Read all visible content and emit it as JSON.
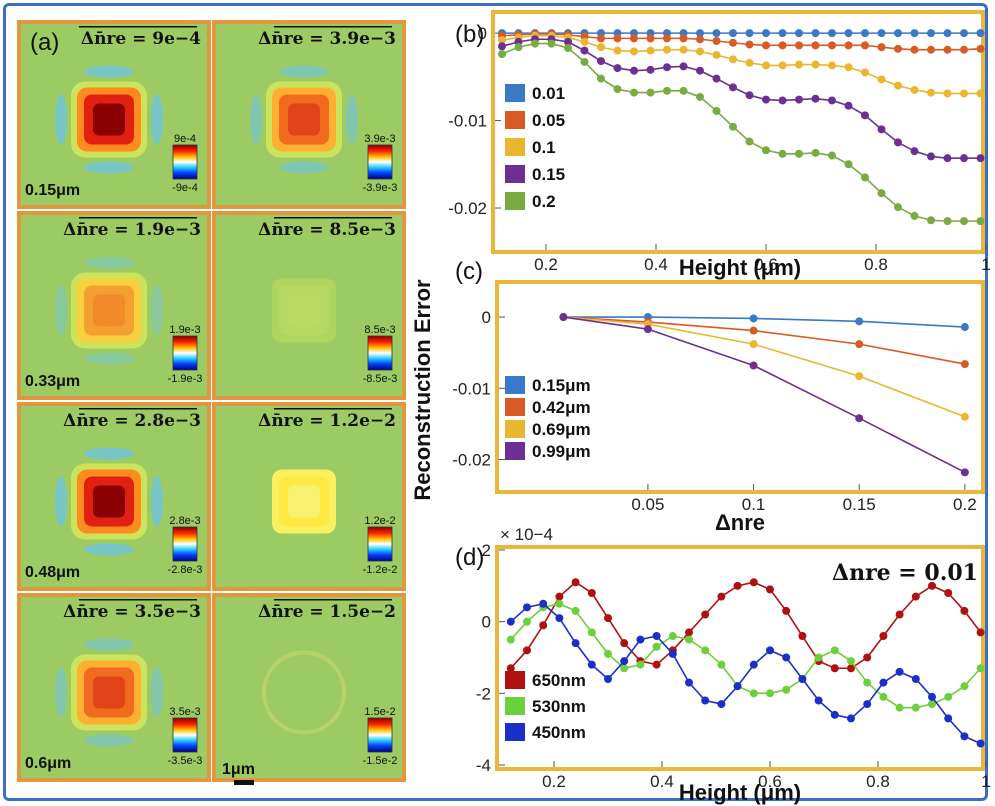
{
  "colors": {
    "frame": "#3a6fc4",
    "panel_border": "#e9b83a",
    "tile_bg": "#9ccb63",
    "tile_border": "#e1973f"
  },
  "panel_a": {
    "letter": "(a)",
    "scale_bar_label": "1μm",
    "tiles": [
      {
        "formula": "Δn̄re = 9e−4",
        "height_label": "0.15μm",
        "cb_max": "9e-4",
        "cb_min": "-9e-4",
        "intensity": 0.95,
        "pattern": "strong"
      },
      {
        "formula": "Δn̄re = 3.9e−3",
        "height_label": "",
        "cb_max": "3.9e-3",
        "cb_min": "-3.9e-3",
        "intensity": 0.75,
        "pattern": "medium"
      },
      {
        "formula": "Δn̄re = 1.9e−3",
        "height_label": "0.33μm",
        "cb_max": "1.9e-3",
        "cb_min": "-1.9e-3",
        "intensity": 0.55,
        "pattern": "weak"
      },
      {
        "formula": "Δn̄re = 8.5e−3",
        "height_label": "",
        "cb_max": "8.5e-3",
        "cb_min": "-8.5e-3",
        "intensity": 0.15,
        "pattern": "faint"
      },
      {
        "formula": "Δn̄re = 2.8e−3",
        "height_label": "0.48μm",
        "cb_max": "2.8e-3",
        "cb_min": "-2.8e-3",
        "intensity": 0.95,
        "pattern": "strong"
      },
      {
        "formula": "Δn̄re = 1.2e−2",
        "height_label": "",
        "cb_max": "1.2e-2",
        "cb_min": "-1.2e-2",
        "intensity": 0.35,
        "pattern": "yellow"
      },
      {
        "formula": "Δn̄re = 3.5e−3",
        "height_label": "0.6μm",
        "cb_max": "3.5e-3",
        "cb_min": "-3.5e-3",
        "intensity": 0.7,
        "pattern": "medium"
      },
      {
        "formula": "Δn̄re = 1.5e−2",
        "height_label": "",
        "cb_max": "1.5e-2",
        "cb_min": "-1.5e-2",
        "intensity": 0.1,
        "pattern": "ring"
      }
    ]
  },
  "chart_data": [
    {
      "panel": "(b)",
      "type": "line",
      "xlabel": "Height (μm)",
      "ylabel": "",
      "xlim": [
        0.12,
        1.0
      ],
      "ylim": [
        -0.024,
        0.0015
      ],
      "xticks": [
        0.2,
        0.4,
        0.6,
        0.8,
        1
      ],
      "xtick_labels": [
        "0.2",
        "0.4",
        "0.6",
        "0.8",
        "1"
      ],
      "yticks": [
        0,
        -0.01,
        -0.02
      ],
      "ytick_labels": [
        "0",
        "-0.01",
        "-0.02"
      ],
      "x": [
        0.12,
        0.15,
        0.18,
        0.21,
        0.24,
        0.27,
        0.3,
        0.33,
        0.36,
        0.39,
        0.42,
        0.45,
        0.48,
        0.51,
        0.54,
        0.57,
        0.6,
        0.63,
        0.66,
        0.69,
        0.72,
        0.75,
        0.78,
        0.81,
        0.84,
        0.87,
        0.9,
        0.93,
        0.96,
        0.99
      ],
      "series": [
        {
          "name": "0.01",
          "color": "#3a78c8",
          "values": [
            0,
            0,
            0,
            0,
            0,
            0,
            0,
            0,
            0,
            0,
            0,
            0,
            0,
            0,
            0,
            0,
            0,
            0,
            0,
            0,
            0,
            0,
            0,
            0,
            0,
            0,
            0,
            0,
            0,
            0
          ]
        },
        {
          "name": "0.05",
          "color": "#d85a24",
          "values": [
            -0.0003,
            -0.0002,
            -0.0001,
            -0.0001,
            -0.0002,
            -0.0004,
            -0.0006,
            -0.0006,
            -0.0006,
            -0.0006,
            -0.0006,
            -0.0006,
            -0.0007,
            -0.0009,
            -0.0011,
            -0.0013,
            -0.0014,
            -0.0014,
            -0.0014,
            -0.0014,
            -0.0014,
            -0.0014,
            -0.0014,
            -0.0016,
            -0.0018,
            -0.0019,
            -0.0019,
            -0.0019,
            -0.0019,
            -0.0018
          ]
        },
        {
          "name": "0.1",
          "color": "#eab62f",
          "values": [
            -0.0008,
            -0.0005,
            -0.0003,
            -0.0003,
            -0.0005,
            -0.001,
            -0.0016,
            -0.002,
            -0.0021,
            -0.002,
            -0.0019,
            -0.0019,
            -0.0021,
            -0.0025,
            -0.003,
            -0.0034,
            -0.0037,
            -0.0037,
            -0.0036,
            -0.0036,
            -0.0037,
            -0.0039,
            -0.0045,
            -0.0053,
            -0.006,
            -0.0065,
            -0.0068,
            -0.0069,
            -0.0069,
            -0.0069
          ]
        },
        {
          "name": "0.15",
          "color": "#6d2f92",
          "values": [
            -0.0015,
            -0.001,
            -0.0007,
            -0.0007,
            -0.001,
            -0.002,
            -0.0032,
            -0.004,
            -0.0043,
            -0.0042,
            -0.0039,
            -0.0038,
            -0.0043,
            -0.0052,
            -0.0062,
            -0.0071,
            -0.0076,
            -0.0077,
            -0.0076,
            -0.0075,
            -0.0077,
            -0.0083,
            -0.0094,
            -0.011,
            -0.0125,
            -0.0135,
            -0.0141,
            -0.0143,
            -0.0143,
            -0.0143
          ]
        },
        {
          "name": "0.2",
          "color": "#78ac41",
          "values": [
            -0.0024,
            -0.0016,
            -0.0012,
            -0.0012,
            -0.0017,
            -0.0033,
            -0.0052,
            -0.0064,
            -0.0068,
            -0.0068,
            -0.0066,
            -0.0066,
            -0.0073,
            -0.0089,
            -0.0107,
            -0.0124,
            -0.0134,
            -0.0138,
            -0.0138,
            -0.0137,
            -0.014,
            -0.015,
            -0.0165,
            -0.0183,
            -0.0199,
            -0.0209,
            -0.0214,
            -0.0215,
            -0.0215,
            -0.0215
          ]
        }
      ],
      "legend_position": "left"
    },
    {
      "panel": "(c)",
      "type": "line",
      "xlabel": "Δnre",
      "ylabel": "Reconstruction Error",
      "xlim": [
        -0.02,
        0.21
      ],
      "ylim": [
        -0.024,
        0.0045
      ],
      "xticks": [
        0.05,
        0.1,
        0.15,
        0.2
      ],
      "xtick_labels": [
        "0.05",
        "0.1",
        "0.15",
        "0.2"
      ],
      "yticks": [
        0,
        -0.01,
        -0.02
      ],
      "ytick_labels": [
        "0",
        "-0.01",
        "-0.02"
      ],
      "x": [
        0.01,
        0.05,
        0.1,
        0.15,
        0.2
      ],
      "series": [
        {
          "name": "0.15μm",
          "color": "#3a78c8",
          "values": [
            0,
            0,
            -0.0002,
            -0.0006,
            -0.0014
          ]
        },
        {
          "name": "0.42μm",
          "color": "#d85a24",
          "values": [
            0,
            -0.0007,
            -0.0019,
            -0.0038,
            -0.0066
          ]
        },
        {
          "name": "0.69μm",
          "color": "#eab62f",
          "values": [
            0,
            -0.001,
            -0.0038,
            -0.0083,
            -0.014
          ]
        },
        {
          "name": "0.99μm",
          "color": "#6d2f92",
          "values": [
            0,
            -0.0017,
            -0.0068,
            -0.0142,
            -0.0218
          ]
        }
      ],
      "legend_position": "left"
    },
    {
      "panel": "(d)",
      "type": "line",
      "xlabel": "Height (μm)",
      "ylabel": "",
      "annotation": "Δnre = 0.01",
      "multiplier_label": "× 10−4",
      "xlim": [
        0.1,
        1.0
      ],
      "ylim": [
        -4.0,
        2.0
      ],
      "xticks": [
        0.2,
        0.4,
        0.6,
        0.8,
        1
      ],
      "xtick_labels": [
        "0.2",
        "0.4",
        "0.6",
        "0.8",
        "1"
      ],
      "yticks": [
        2,
        0,
        -2,
        -4
      ],
      "ytick_labels": [
        "2",
        "0",
        "-2",
        "-4"
      ],
      "series": [
        {
          "name": "650nm",
          "color": "#b01010",
          "x": [
            0.12,
            0.15,
            0.18,
            0.21,
            0.24,
            0.27,
            0.3,
            0.33,
            0.36,
            0.39,
            0.42,
            0.45,
            0.48,
            0.51,
            0.54,
            0.57,
            0.6,
            0.63,
            0.66,
            0.69,
            0.72,
            0.75,
            0.78,
            0.81,
            0.84,
            0.87,
            0.9,
            0.93,
            0.96,
            0.99
          ],
          "values": [
            -1.3,
            -0.8,
            -0.1,
            0.7,
            1.1,
            0.8,
            0.1,
            -0.6,
            -1.1,
            -1.2,
            -0.8,
            -0.3,
            0.2,
            0.7,
            1.0,
            1.1,
            0.9,
            0.3,
            -0.4,
            -1.1,
            -1.3,
            -1.3,
            -1.0,
            -0.4,
            0.2,
            0.7,
            1.0,
            0.8,
            0.3,
            -0.3
          ]
        },
        {
          "name": "530nm",
          "color": "#6ccf3c",
          "x": [
            0.12,
            0.15,
            0.18,
            0.21,
            0.24,
            0.27,
            0.3,
            0.33,
            0.36,
            0.39,
            0.42,
            0.45,
            0.48,
            0.51,
            0.54,
            0.57,
            0.6,
            0.63,
            0.66,
            0.69,
            0.72,
            0.75,
            0.78,
            0.81,
            0.84,
            0.87,
            0.9,
            0.93,
            0.96,
            0.99
          ],
          "values": [
            -0.5,
            0.0,
            0.4,
            0.5,
            0.3,
            -0.3,
            -0.9,
            -1.3,
            -1.2,
            -0.7,
            -0.4,
            -0.5,
            -0.8,
            -1.2,
            -1.8,
            -2.0,
            -2.0,
            -1.9,
            -1.6,
            -1.0,
            -0.8,
            -1.1,
            -1.7,
            -2.1,
            -2.4,
            -2.4,
            -2.3,
            -2.1,
            -1.8,
            -1.3
          ]
        },
        {
          "name": "450nm",
          "color": "#1b2fc8",
          "x": [
            0.12,
            0.15,
            0.18,
            0.21,
            0.24,
            0.27,
            0.3,
            0.33,
            0.36,
            0.39,
            0.42,
            0.45,
            0.48,
            0.51,
            0.54,
            0.57,
            0.6,
            0.63,
            0.66,
            0.69,
            0.72,
            0.75,
            0.78,
            0.81,
            0.84,
            0.87,
            0.9,
            0.93,
            0.96,
            0.99
          ],
          "values": [
            0.0,
            0.4,
            0.5,
            0.1,
            -0.6,
            -1.2,
            -1.6,
            -1.1,
            -0.5,
            -0.4,
            -0.9,
            -1.7,
            -2.2,
            -2.3,
            -1.8,
            -1.2,
            -0.8,
            -1.0,
            -1.6,
            -2.2,
            -2.6,
            -2.7,
            -2.3,
            -1.7,
            -1.4,
            -1.6,
            -2.1,
            -2.7,
            -3.2,
            -3.4
          ]
        }
      ],
      "legend_position": "bottom-left"
    }
  ]
}
